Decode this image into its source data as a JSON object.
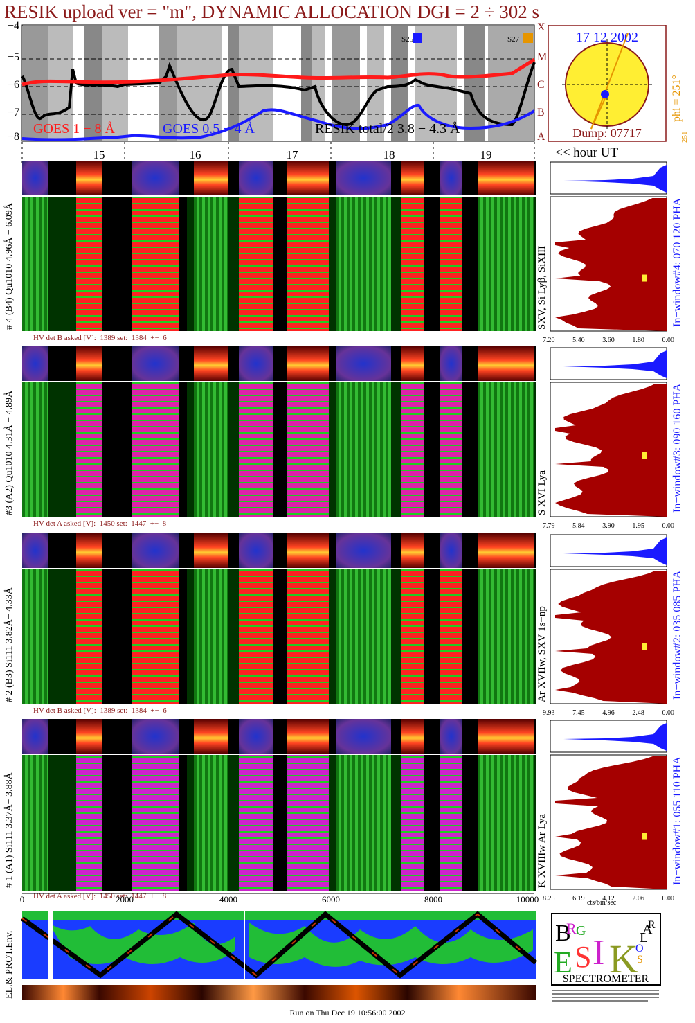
{
  "header": {
    "title": "RESIK upload ver = \"m\", DYNAMIC ALLOCATION  DGI =   2 ÷ 302 s"
  },
  "goes": {
    "y_ticks": [
      "−4",
      "−5",
      "−6",
      "−7",
      "−8"
    ],
    "right_letters": [
      "X",
      "M",
      "C",
      "B",
      "A"
    ],
    "legend_red": "GOES 1 − 8 Å",
    "legend_blue": "GOES 0.5 − 4 Å",
    "legend_black": "RESIK total/2  3.8 − 4.3 Å",
    "markers": [
      "S25",
      "S27"
    ]
  },
  "time_axis": {
    "hours": [
      "15",
      "16",
      "17",
      "18",
      "19"
    ],
    "unit_label": "<< hour UT"
  },
  "sun": {
    "date": "17 12 2002",
    "dump": "Dump: 07717",
    "phi": "phi = 251°",
    "phi_sub": "251",
    "phi_bottom": "251"
  },
  "panels": [
    {
      "left_label": "# 4 (B4) Qu1010 4.96Å − 6.09Å",
      "lines": "SXV, Si Lyβ, SiXIII",
      "window": "In−window#4:  070 120 PHA",
      "hv": "HV det B asked [V]:  1389 set:  1384  +−  6",
      "ticks": [
        "7.20",
        "5.40",
        "3.60",
        "1.80",
        "0.00"
      ],
      "mark_frac": 0.58
    },
    {
      "left_label": "#3 (A2) Qu1010  4.31Å − 4.89Å",
      "lines": "S XVI Lya",
      "window": "In−window#3:  090 160 PHA",
      "hv": "HV det A asked [V]:  1450 set:  1447  +−  8",
      "ticks": [
        "7.79",
        "5.84",
        "3.90",
        "1.95",
        "0.00"
      ],
      "mark_frac": 0.52
    },
    {
      "left_label": "# 2 (B3) Si111  3.82Å− 4.33Å",
      "lines": "Ar XVIIw,  SXV 1s−np",
      "window": "In−window#2:  035 085 PHA",
      "hv": "HV det B asked [V]:  1389 set:  1384  +−  6",
      "ticks": [
        "9.93",
        "7.45",
        "4.96",
        "2.48",
        "0.00"
      ],
      "mark_frac": 0.55
    },
    {
      "left_label": "# 1 (A1) Si111  3.37Å− 3.88Å",
      "lines": "K XVIIIw  Ar Lya",
      "window": "In−window#1:  055 110 PHA",
      "hv": "HV det A asked [V]:  1450 set:  1447  +−  8",
      "ticks": [
        "8.25",
        "6.19",
        "4.12",
        "2.06",
        "0.00"
      ],
      "mark_frac": 0.58
    }
  ],
  "channel_axis": {
    "ticks": [
      "0",
      "2000",
      "4000",
      "6000",
      "8000",
      "10000"
    ]
  },
  "hist_unit": "cts/bin/sec",
  "env_label": "EL.& PROT.Env.",
  "logo": {
    "text": "SPECTROMETER",
    "letters": [
      "B",
      "R",
      "G",
      "E",
      "S",
      "I",
      "K",
      "S",
      "O",
      "L",
      "A",
      "R"
    ]
  },
  "footer": "Run on Thu Dec 19 10:56:00 2002",
  "colors": {
    "maroon": "#8b1a1a",
    "green": "#22cc22",
    "red": "#ff1a1a",
    "magenta": "#cc22cc",
    "blue": "#1a1aff",
    "yellow": "#ffee33"
  }
}
